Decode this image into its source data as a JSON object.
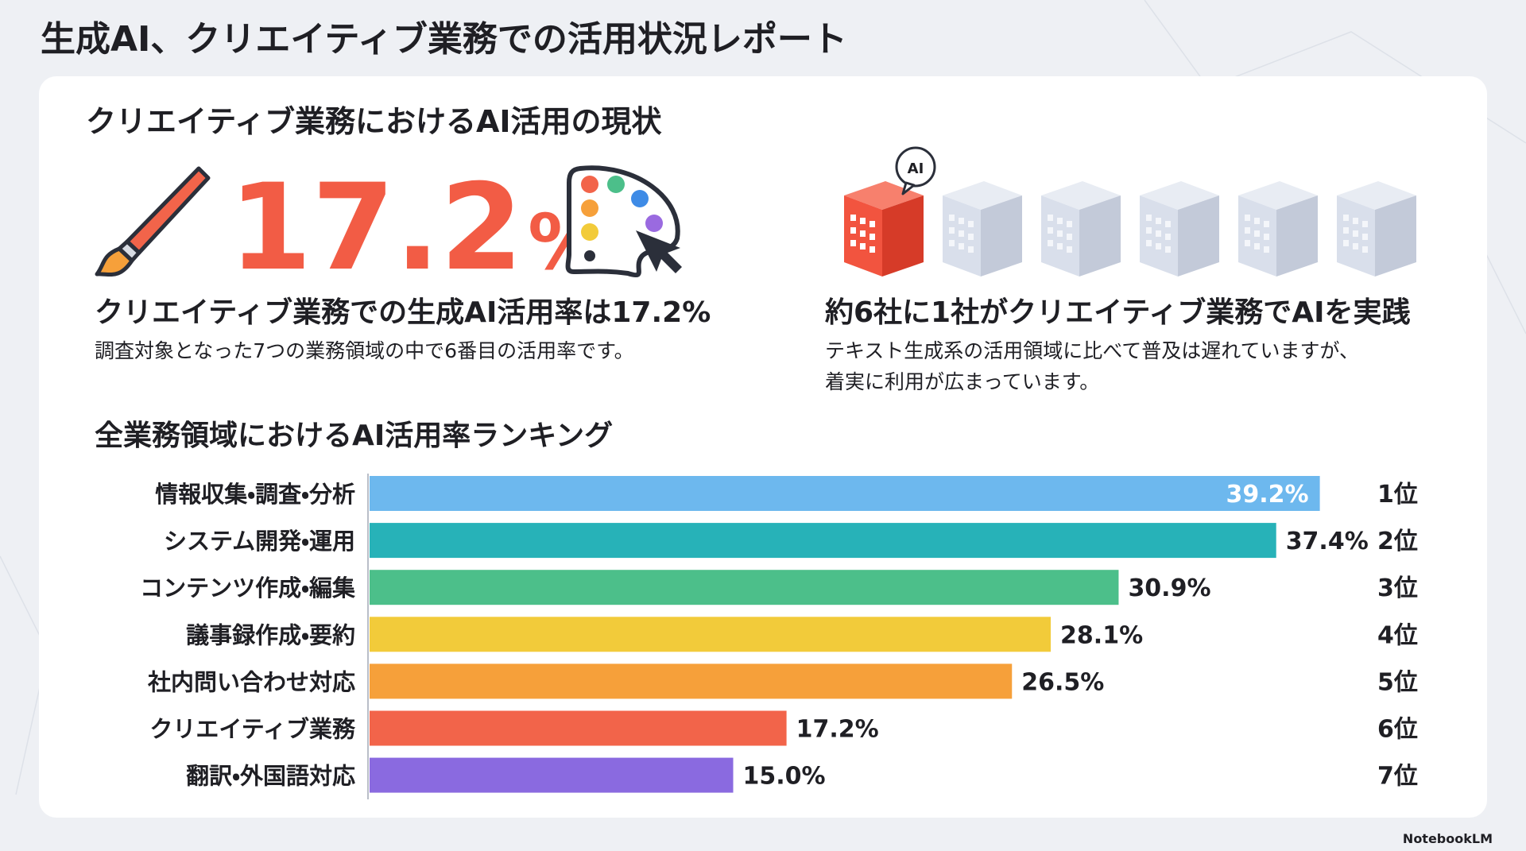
{
  "header": {
    "title": "生成AI、クリエイティブ業務での活用状況レポート"
  },
  "current": {
    "heading": "クリエイティブ業務におけるAI活用の現状",
    "stat_number": "17.2",
    "stat_unit": "%",
    "left": {
      "heading": "クリエイティブ業務での生成AI活用率は17.2%",
      "text": "調査対象となった7つの業務領域の中で6番目の活用率です。"
    },
    "right": {
      "icon_label": "AI",
      "heading": "約6社に1社がクリエイティブ業務でAIを実践",
      "lines": [
        "テキスト生成系の活用領域に比べて普及は遅れていますが、",
        "着実に利用が広まっています。"
      ]
    }
  },
  "chart_data": {
    "type": "bar",
    "orientation": "horizontal",
    "title": "全業務領域におけるAI活用率ランキング",
    "categories": [
      "情報収集・調査・分析",
      "システム開発・運用",
      "コンテンツ作成・編集",
      "議事録作成・要約",
      "社内問い合わせ対応",
      "クリエイティブ業務",
      "翻訳・外国語対応"
    ],
    "values": [
      39.2,
      37.4,
      30.9,
      28.1,
      26.5,
      17.2,
      15.0
    ],
    "value_labels": [
      "39.2%",
      "37.4%",
      "30.9%",
      "28.1%",
      "26.5%",
      "17.2%",
      "15.0%"
    ],
    "ranks": [
      "1位",
      "2位",
      "3位",
      "4位",
      "5位",
      "6位",
      "7位"
    ],
    "colors": [
      "#6db8ee",
      "#27b2b8",
      "#4cbf8a",
      "#f2cb3a",
      "#f6a03a",
      "#f2644a",
      "#8a6ae0"
    ]
  },
  "footer": {
    "brand": "NotebookLM"
  }
}
